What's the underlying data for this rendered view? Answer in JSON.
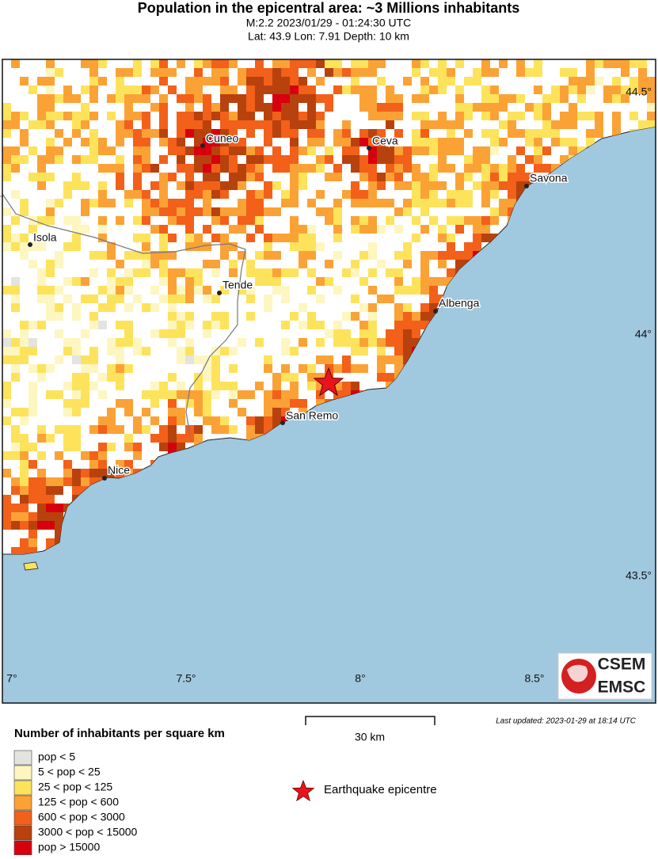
{
  "header": {
    "title": "Population in the epicentral area: ~3 Millions inhabitants",
    "line1": "M:2.2 2023/01/29 - 01:24:30 UTC",
    "line2": "Lat: 43.9 Lon: 7.91 Depth: 10 km"
  },
  "map": {
    "lat_labels": [
      "44.5°",
      "44°",
      "43.5°"
    ],
    "lon_labels": [
      "7°",
      "7.5°",
      "8°",
      "8.5°"
    ],
    "places": [
      "Cuneo",
      "Ceva",
      "Savona",
      "Isola",
      "Tende",
      "Albenga",
      "San Remo",
      "Nice"
    ]
  },
  "scale_bar": "30 km",
  "last_updated": "Last updated: 2023-01-29 at 18:14 UTC",
  "legend": {
    "title": "Number of inhabitants per square km",
    "items": [
      {
        "label": "pop < 5",
        "color": "#e3e3e0"
      },
      {
        "label": "5 < pop < 25",
        "color": "#fdf6c0"
      },
      {
        "label": "25 < pop < 125",
        "color": "#fde35c"
      },
      {
        "label": "125 < pop < 600",
        "color": "#fba236"
      },
      {
        "label": "600 < pop < 3000",
        "color": "#f2601a"
      },
      {
        "label": "3000 < pop < 15000",
        "color": "#b8420d"
      },
      {
        "label": "pop > 15000",
        "color": "#d7000e"
      }
    ],
    "epicentre": "Earthquake epicentre"
  },
  "logo": {
    "top": "CSEM",
    "bottom": "EMSC"
  }
}
